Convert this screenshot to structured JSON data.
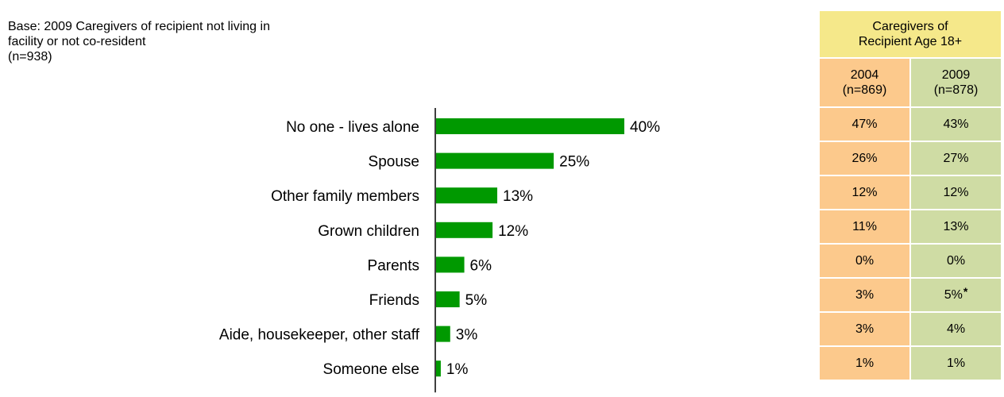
{
  "base_note": {
    "line1": "Base:  2009 Caregivers of recipient not living in",
    "line2": "facility or not co-resident",
    "line3": "(n=938)"
  },
  "colors": {
    "bar": "#009900",
    "header_bg": "#f5e88a",
    "col2004_bg": "#fcc98c",
    "col2009_bg": "#cfdca4"
  },
  "chart_data": {
    "type": "bar",
    "orientation": "horizontal",
    "categories": [
      "No one - lives alone",
      "Spouse",
      "Other family members",
      "Grown children",
      "Parents",
      "Friends",
      "Aide, housekeeper, other staff",
      "Someone else"
    ],
    "values": [
      40,
      25,
      13,
      12,
      6,
      5,
      3,
      1
    ],
    "value_labels": [
      "40%",
      "25%",
      "13%",
      "12%",
      "6%",
      "5%",
      "3%",
      "1%"
    ],
    "unit": "%",
    "xlim": [
      0,
      40
    ]
  },
  "table": {
    "header_line1": "Caregivers of",
    "header_line2": "Recipient Age 18+",
    "columns": [
      {
        "year": "2004",
        "n": "(n=869)"
      },
      {
        "year": "2009",
        "n": "(n=878)"
      }
    ],
    "rows": [
      {
        "v2004": "47%",
        "v2009": "43%",
        "sig": ""
      },
      {
        "v2004": "26%",
        "v2009": "27%",
        "sig": ""
      },
      {
        "v2004": "12%",
        "v2009": "12%",
        "sig": ""
      },
      {
        "v2004": "11%",
        "v2009": "13%",
        "sig": ""
      },
      {
        "v2004": "0%",
        "v2009": "0%",
        "sig": ""
      },
      {
        "v2004": "3%",
        "v2009": "5%",
        "sig": "*"
      },
      {
        "v2004": "3%",
        "v2009": "4%",
        "sig": ""
      },
      {
        "v2004": "1%",
        "v2009": "1%",
        "sig": ""
      }
    ]
  }
}
